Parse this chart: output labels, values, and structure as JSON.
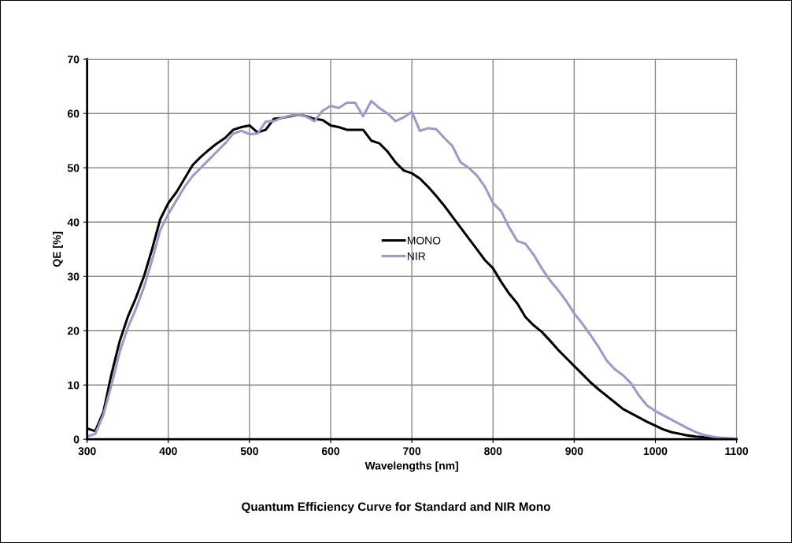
{
  "chart_data": {
    "type": "line",
    "title": "Quantum Efficiency Curve for Standard and NIR Mono",
    "xlabel": "Wavelengths [nm]",
    "ylabel": "QE [%]",
    "x": [
      300,
      310,
      320,
      330,
      340,
      350,
      360,
      370,
      380,
      390,
      400,
      410,
      420,
      430,
      440,
      450,
      460,
      470,
      480,
      490,
      500,
      510,
      520,
      530,
      540,
      550,
      560,
      570,
      580,
      590,
      600,
      610,
      620,
      630,
      640,
      650,
      660,
      670,
      680,
      690,
      700,
      710,
      720,
      730,
      740,
      750,
      760,
      770,
      780,
      790,
      800,
      810,
      820,
      830,
      840,
      850,
      860,
      870,
      880,
      890,
      900,
      910,
      920,
      930,
      940,
      950,
      960,
      970,
      980,
      990,
      1000,
      1010,
      1020,
      1030,
      1040,
      1050,
      1060,
      1070,
      1080,
      1090,
      1100
    ],
    "series": [
      {
        "name": "MONO",
        "color": "#000000",
        "values": [
          2,
          1.5,
          5,
          12,
          18,
          22.5,
          26,
          30,
          35,
          40.5,
          43.5,
          45.5,
          48,
          50.5,
          52,
          53.3,
          54.5,
          55.5,
          57,
          57.5,
          57.8,
          56.5,
          57,
          59,
          59.2,
          59.5,
          59.8,
          59.5,
          59,
          58.8,
          57.8,
          57.5,
          57,
          57,
          57,
          55,
          54.5,
          53,
          51,
          49.5,
          49,
          48,
          46.5,
          44.8,
          43,
          41,
          39,
          37,
          35,
          33,
          31.5,
          29,
          26.8,
          25,
          22.5,
          21,
          19.8,
          18.2,
          16.5,
          15,
          13.5,
          12,
          10.5,
          9.2,
          8,
          6.8,
          5.6,
          4.8,
          4,
          3.2,
          2.5,
          1.8,
          1.3,
          1,
          0.7,
          0.5,
          0.4,
          0.3,
          0.2,
          0.1,
          0
        ]
      },
      {
        "name": "NIR",
        "color": "#a596c6",
        "values": [
          0.5,
          1,
          4.5,
          10,
          16,
          20.5,
          24,
          28,
          33,
          38.5,
          41.5,
          44,
          46.5,
          48.5,
          50,
          51.5,
          53,
          54.5,
          56.3,
          56.8,
          56.2,
          56.3,
          58.5,
          58.6,
          59.2,
          59.6,
          59.9,
          59.4,
          58.6,
          60.5,
          61.4,
          61,
          62,
          62,
          59.5,
          62.3,
          61,
          60,
          58.6,
          59.3,
          60.3,
          56.8,
          57.3,
          57.1,
          55.5,
          54,
          51,
          50,
          48.6,
          46.5,
          43.5,
          42,
          39,
          36.5,
          36,
          34,
          31.5,
          29.3,
          27.5,
          25.5,
          23.2,
          21.3,
          19.2,
          17,
          14.5,
          12.9,
          11.8,
          10.3,
          8,
          6.2,
          5.2,
          4.4,
          3.6,
          2.8,
          2,
          1.3,
          0.8,
          0.5,
          0.3,
          0.2,
          0.1
        ]
      }
    ],
    "xlim": [
      300,
      1100
    ],
    "xticks": [
      300,
      400,
      500,
      600,
      700,
      800,
      900,
      1000,
      1100
    ],
    "ylim": [
      0,
      70
    ],
    "yticks": [
      0,
      10,
      20,
      30,
      40,
      50,
      60,
      70
    ],
    "grid": true,
    "legend": "center",
    "marker": "none",
    "line_style": "solid"
  }
}
